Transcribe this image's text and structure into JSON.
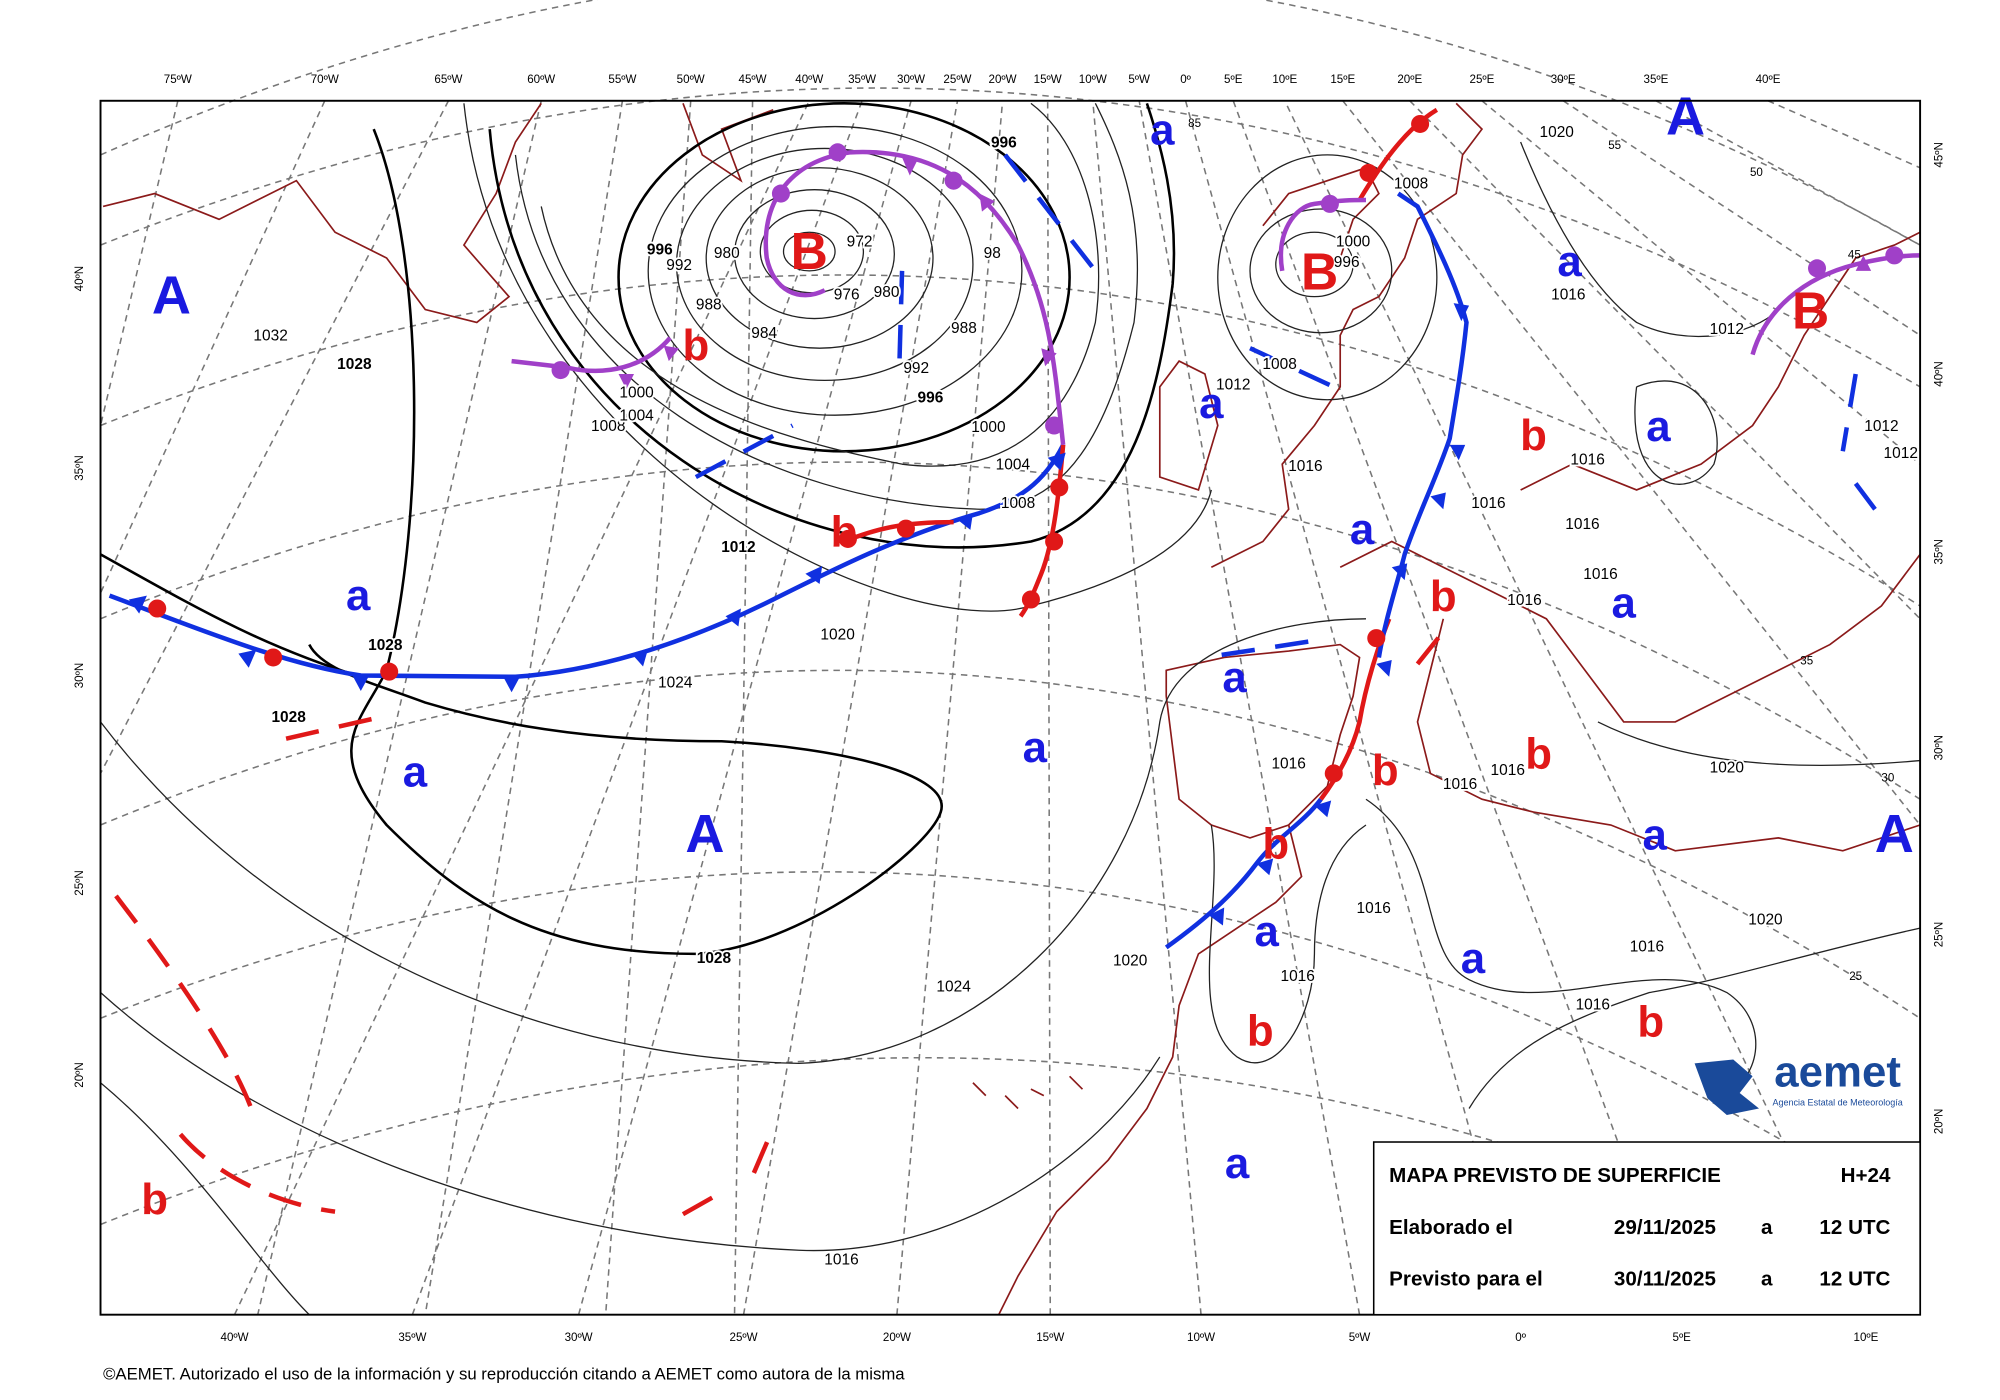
{
  "info_box": {
    "title": "MAPA PREVISTO DE SUPERFICIE",
    "lead": "H+24",
    "rows": [
      [
        "Elaborado el",
        "29/11/2025",
        "a",
        "12 UTC"
      ],
      [
        "Previsto para el",
        "30/11/2025",
        "a",
        "12 UTC"
      ]
    ]
  },
  "copyright": "©AEMET. Autorizado el uso de la información y su reproducción citando a AEMET como autora de la misma",
  "logo": {
    "name": "aemet",
    "subtitle": "Agencia Estatal de Meteorología"
  },
  "top_longitudes": [
    "75ºW",
    "70ºW",
    "65ºW",
    "60ºW",
    "55ºW",
    "50ºW",
    "45ºW",
    "40ºW",
    "35ºW",
    "30ºW",
    "25ºW",
    "20ºW",
    "15ºW",
    "10ºW",
    "5ºW",
    "0º",
    "5ºE",
    "10ºE",
    "15ºE",
    "20ºE",
    "25ºE",
    "30ºE",
    "35ºE",
    "40ºE"
  ],
  "bottom_longitudes": [
    "40ºW",
    "35ºW",
    "30ºW",
    "25ºW",
    "20ºW",
    "15ºW",
    "10ºW",
    "5ºW",
    "0º",
    "5ºE",
    "10ºE"
  ],
  "left_latitudes": [
    "40ºN",
    "35ºN",
    "30ºN",
    "25ºN",
    "20ºN"
  ],
  "right_latitudes": [
    "45ºN",
    "40ºN",
    "35ºN",
    "30ºN",
    "25ºN",
    "20ºN"
  ],
  "map_latitude_marks": [
    "85",
    "55",
    "50",
    "45",
    "35",
    "30",
    "25"
  ],
  "high_centers": [
    "A",
    "A",
    "A",
    "A"
  ],
  "low_centers": [
    "B",
    "B",
    "B"
  ],
  "relative_highs": [
    "a",
    "a",
    "a",
    "a",
    "a",
    "a",
    "a",
    "a",
    "a",
    "a",
    "a",
    "a",
    "a",
    "a"
  ],
  "relative_lows": [
    "b",
    "b",
    "b",
    "b",
    "b",
    "b",
    "b",
    "b",
    "b",
    "b"
  ],
  "isobar_labels": [
    "1032",
    "1028",
    "1028",
    "1028",
    "1028",
    "1024",
    "1024",
    "1020",
    "1020",
    "1020",
    "1020",
    "1020",
    "1016",
    "1016",
    "1016",
    "1016",
    "1016",
    "1016",
    "1016",
    "1016",
    "1016",
    "1016",
    "1016",
    "1016",
    "1016",
    "1016",
    "1016",
    "1012",
    "1012",
    "1012",
    "1012",
    "1012",
    "1008",
    "1008",
    "1008",
    "1004",
    "1004",
    "1000",
    "1000",
    "1000",
    "996",
    "996",
    "996",
    "996",
    "992",
    "992",
    "988",
    "988",
    "984",
    "980",
    "980",
    "976",
    "972",
    "98",
    "1008"
  ]
}
